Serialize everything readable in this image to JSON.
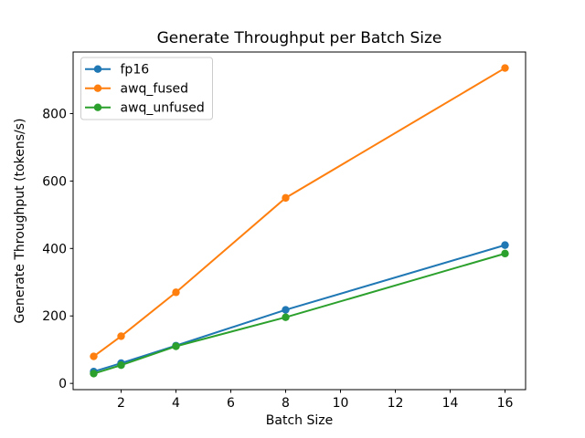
{
  "chart_data": {
    "type": "line",
    "title": "Generate Throughput per Batch Size",
    "xlabel": "Batch Size",
    "ylabel": "Generate Throughput (tokens/s)",
    "x": [
      1,
      2,
      4,
      8,
      16
    ],
    "series": [
      {
        "name": "fp16",
        "color": "#1f77b4",
        "values": [
          35,
          60,
          112,
          218,
          410
        ]
      },
      {
        "name": "awq_fused",
        "color": "#ff7f0e",
        "values": [
          80,
          140,
          270,
          550,
          935
        ]
      },
      {
        "name": "awq_unfused",
        "color": "#2ca02c",
        "values": [
          29,
          54,
          110,
          196,
          385
        ]
      }
    ],
    "xticks": [
      2,
      4,
      6,
      8,
      10,
      12,
      14,
      16
    ],
    "yticks": [
      0,
      200,
      400,
      600,
      800
    ],
    "xlim": [
      0.25,
      16.75
    ],
    "ylim": [
      -18.5,
      982.5
    ],
    "grid": false,
    "marker": "o",
    "legend": {
      "position": "upper left",
      "entries": [
        "fp16",
        "awq_fused",
        "awq_unfused"
      ]
    },
    "colors": {
      "background": "#ffffff",
      "text": "#000000",
      "spine": "#000000",
      "legend_border": "#cccccc",
      "legend_fill": "#ffffff"
    }
  }
}
